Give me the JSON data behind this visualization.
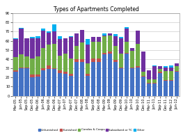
{
  "title": "Types of Apartments Completed",
  "categories": [
    "Mar-05",
    "Jun-05",
    "Sep-05",
    "Dec-05",
    "Mar-06",
    "Jun-06",
    "Sep-06",
    "Dec-06",
    "Mar-07",
    "Jun-07",
    "Sep-07",
    "Dec-07",
    "Mar-08",
    "Jun-08",
    "Sep-08",
    "Dec-08",
    "Mar-09",
    "Jun-09",
    "Sep-09",
    "Dec-09",
    "Mar-10",
    "Jun-10",
    "Sep-10",
    "Dec-10",
    "Mar-11",
    "Jun-11",
    "Sep-11",
    "Dec-11",
    "Mar-12",
    "Jun-12"
  ],
  "series": {
    "Unfurnished": [
      26,
      30,
      30,
      20,
      21,
      28,
      29,
      29,
      25,
      24,
      22,
      37,
      37,
      22,
      37,
      37,
      45,
      46,
      37,
      30,
      46,
      30,
      31,
      21,
      13,
      13,
      25,
      16,
      16,
      26
    ],
    "Furnished": [
      2,
      1,
      1,
      3,
      2,
      2,
      4,
      1,
      3,
      2,
      2,
      3,
      3,
      2,
      4,
      4,
      2,
      2,
      2,
      1,
      1,
      1,
      1,
      1,
      1,
      1,
      1,
      1,
      1,
      1
    ],
    "Condos & Coops": [
      14,
      14,
      12,
      18,
      20,
      22,
      23,
      27,
      16,
      20,
      17,
      14,
      18,
      11,
      18,
      18,
      18,
      18,
      15,
      15,
      12,
      18,
      25,
      4,
      4,
      4,
      3,
      10,
      10,
      5
    ],
    "Subsidized or TC": [
      20,
      28,
      20,
      22,
      20,
      19,
      13,
      13,
      18,
      17,
      23,
      14,
      14,
      21,
      5,
      5,
      1,
      2,
      11,
      17,
      14,
      3,
      14,
      22,
      10,
      14,
      3,
      4,
      4,
      3
    ],
    "Other": [
      1,
      1,
      0,
      1,
      2,
      2,
      1,
      8,
      3,
      0,
      1,
      0,
      0,
      6,
      0,
      0,
      2,
      0,
      2,
      1,
      2,
      0,
      0,
      0,
      0,
      1,
      0,
      1,
      2,
      0
    ]
  },
  "colors": {
    "Unfurnished": "#4472C4",
    "Furnished": "#C0504D",
    "Condos & Coops": "#70AD47",
    "Subsidized or TC": "#7030A0",
    "Other": "#00B0F0"
  },
  "ylim": [
    0,
    90
  ],
  "yticks": [
    0,
    10,
    20,
    30,
    40,
    50,
    60,
    70,
    80,
    90
  ],
  "background_color": "#FFFFFF",
  "grid_color": "#C0C0C0",
  "title_fontsize": 5.5,
  "tick_fontsize": 3.5,
  "legend_fontsize": 3.0
}
